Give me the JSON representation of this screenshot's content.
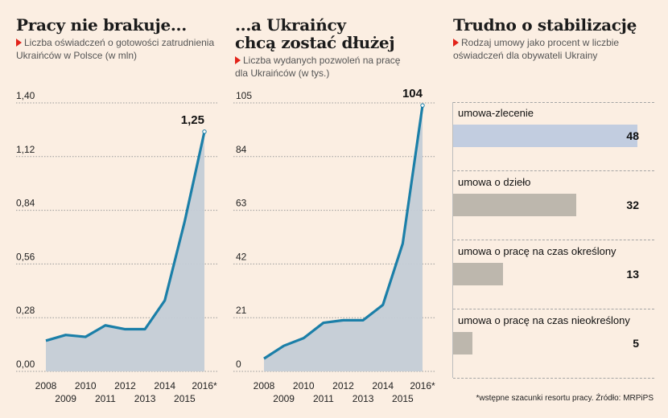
{
  "charts": [
    {
      "title": "Pracy nie brakuje...",
      "subtitle_line1": "Liczba oświadczeń o gotowości zatrudnienia",
      "subtitle_line2": "Ukraińców w Polsce (w mln)"
    },
    {
      "title_line1": "...a Ukraińcy",
      "title_line2": "chcą zostać dłużej",
      "subtitle_line1": "Liczba wydanych pozwoleń na pracę",
      "subtitle_line2": "dla Ukraińców (w tys.)"
    },
    {
      "title": "Trudno o stabilizację",
      "subtitle_line1": "Rodzaj umowy jako procent w liczbie",
      "subtitle_line2": "oświadczeń dla obywateli Ukrainy"
    }
  ],
  "footnote": "*wstępne szacunki resortu pracy. Źródło: MRPiPS",
  "colors": {
    "line": "#1b7fa8",
    "area": "#c4ccd6",
    "bar_highlight": "#c2cde0",
    "bar": "#bdb7ad",
    "marker": "#e2231a"
  },
  "chart_data": [
    {
      "type": "area",
      "title": "Pracy nie brakuje...",
      "x": [
        "2008",
        "2009",
        "2010",
        "2011",
        "2012",
        "2013",
        "2014",
        "2015",
        "2016*"
      ],
      "values": [
        0.16,
        0.19,
        0.18,
        0.24,
        0.22,
        0.22,
        0.37,
        0.78,
        1.25
      ],
      "ylim": [
        0,
        1.4
      ],
      "yticks": [
        "0,00",
        "0,28",
        "0,56",
        "0,84",
        "1,12",
        "1,40"
      ],
      "end_label": "1,25",
      "grid": true
    },
    {
      "type": "area",
      "title": "...a Ukraińcy chcą zostać dłużej",
      "x": [
        "2008",
        "2009",
        "2010",
        "2011",
        "2012",
        "2013",
        "2014",
        "2015",
        "2016*"
      ],
      "values": [
        5,
        10,
        13,
        19,
        20,
        20,
        26,
        50,
        104
      ],
      "ylim": [
        0,
        105
      ],
      "yticks": [
        "0",
        "21",
        "42",
        "63",
        "84",
        "105"
      ],
      "end_label": "104",
      "grid": true
    },
    {
      "type": "bar",
      "title": "Trudno o stabilizację",
      "categories": [
        "umowa-zlecenie",
        "umowa o dzieło",
        "umowa o pracę na czas określony",
        "umowa o pracę na czas nieokreślony"
      ],
      "values": [
        48,
        32,
        13,
        5
      ],
      "labels": [
        "48",
        "32",
        "13",
        "5"
      ],
      "xlim": [
        0,
        50
      ]
    }
  ]
}
